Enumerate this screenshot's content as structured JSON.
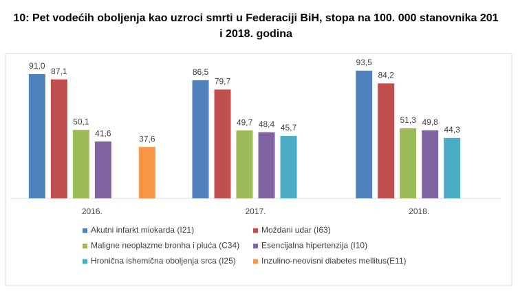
{
  "chart_data": {
    "type": "bar",
    "title": [
      "10: Pet vodećih oboljenja kao uzroci smrti u Federaciji BiH, stopa na 100. 000 stanovnika 201",
      "i 2018. godina"
    ],
    "categories": [
      "2016.",
      "2017.",
      "2018."
    ],
    "series": [
      {
        "name": "Akutni infarkt miokarda (I21)",
        "color": "#4f81bd",
        "values": [
          91.0,
          86.5,
          93.5
        ],
        "value_labels": [
          "91,0",
          "86,5",
          "93,5"
        ]
      },
      {
        "name": "Moždani udar (I63)",
        "color": "#c0504d",
        "values": [
          87.1,
          79.7,
          84.2
        ],
        "value_labels": [
          "87,1",
          "79,7",
          "84,2"
        ]
      },
      {
        "name": "Maligne neoplazme bronha i pluća (C34)",
        "color": "#9bbb59",
        "values": [
          50.1,
          49.7,
          51.3
        ],
        "value_labels": [
          "50,1",
          "49,7",
          "51,3"
        ]
      },
      {
        "name": "Esencijalna hipertenzija (I10)",
        "color": "#8064a2",
        "values": [
          41.6,
          48.4,
          49.8
        ],
        "value_labels": [
          "41,6",
          "48,4",
          "49,8"
        ]
      },
      {
        "name": "Hronična ishemična oboljenja srca (I25)",
        "color": "#4bacc6",
        "values": [
          null,
          45.7,
          44.3
        ],
        "value_labels": [
          null,
          "45,7",
          "44,3"
        ]
      },
      {
        "name": "Inzulino-neovisni diabetes mellitus(E11)",
        "color": "#f79646",
        "values": [
          37.6,
          null,
          null
        ],
        "value_labels": [
          "37,6",
          null,
          null
        ]
      }
    ]
  }
}
